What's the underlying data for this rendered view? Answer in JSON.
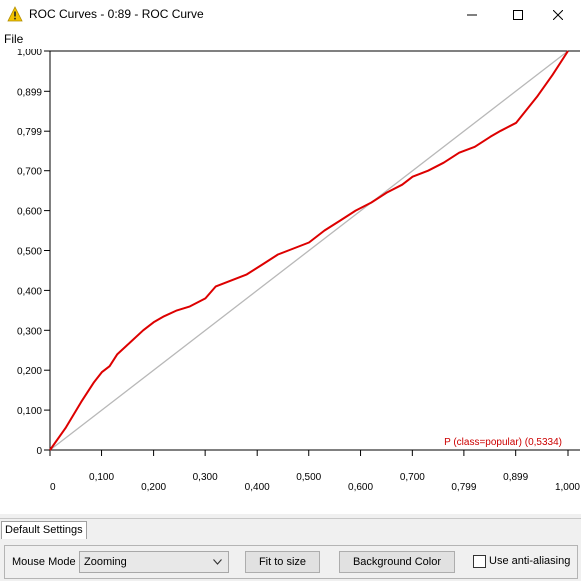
{
  "window": {
    "title": "ROC Curves - 0:89 - ROC Curve",
    "minimize_icon": "minimize-icon",
    "maximize_icon": "maximize-icon",
    "close_icon": "close-icon",
    "app_icon": "warning-triangle-icon"
  },
  "menu": {
    "file": "File"
  },
  "tab": {
    "default_settings": "Default Settings"
  },
  "controls": {
    "mouse_mode_label": "Mouse Mode",
    "mouse_mode_value": "Zooming",
    "fit_to_size": "Fit to size",
    "background_color": "Background Color",
    "anti_aliasing_label": "Use anti-aliasing",
    "anti_aliasing_checked": false
  },
  "colors": {
    "curve": "#dd0000",
    "diagonal": "#b8b8b8",
    "legend": "#cc0000"
  },
  "chart_data": {
    "type": "line",
    "title": "",
    "xlabel": "",
    "ylabel": "",
    "xlim": [
      0,
      1
    ],
    "ylim": [
      0,
      1
    ],
    "grid": false,
    "x_ticks": [
      {
        "v": 0.0,
        "label": "0"
      },
      {
        "v": 0.0995,
        "label": "0,100"
      },
      {
        "v": 0.2,
        "label": "0,200"
      },
      {
        "v": 0.2995,
        "label": "0,300"
      },
      {
        "v": 0.4,
        "label": "0,400"
      },
      {
        "v": 0.4995,
        "label": "0,500"
      },
      {
        "v": 0.5995,
        "label": "0,600"
      },
      {
        "v": 0.6995,
        "label": "0,700"
      },
      {
        "v": 0.799,
        "label": "0,799"
      },
      {
        "v": 0.899,
        "label": "0,899"
      },
      {
        "v": 1.0,
        "label": "1,000"
      }
    ],
    "y_ticks": [
      {
        "v": 0.0,
        "label": "0"
      },
      {
        "v": 0.1,
        "label": "0,100"
      },
      {
        "v": 0.2,
        "label": "0,200"
      },
      {
        "v": 0.3,
        "label": "0,300"
      },
      {
        "v": 0.4,
        "label": "0,400"
      },
      {
        "v": 0.5,
        "label": "0,500"
      },
      {
        "v": 0.6,
        "label": "0,600"
      },
      {
        "v": 0.7,
        "label": "0,700"
      },
      {
        "v": 0.799,
        "label": "0,799"
      },
      {
        "v": 0.899,
        "label": "0,899"
      },
      {
        "v": 1.0,
        "label": "1,000"
      }
    ],
    "diagonal": {
      "x": [
        0,
        1
      ],
      "y": [
        0,
        1
      ]
    },
    "series": [
      {
        "name": "P (class=popular) (0,5334)",
        "x": [
          0,
          0.03,
          0.06,
          0.085,
          0.1,
          0.115,
          0.13,
          0.155,
          0.18,
          0.2,
          0.22,
          0.245,
          0.27,
          0.3,
          0.32,
          0.35,
          0.38,
          0.41,
          0.44,
          0.47,
          0.5,
          0.53,
          0.56,
          0.59,
          0.62,
          0.65,
          0.68,
          0.7,
          0.73,
          0.76,
          0.79,
          0.82,
          0.85,
          0.87,
          0.9,
          0.94,
          0.97,
          1.0
        ],
        "y": [
          0,
          0.055,
          0.12,
          0.17,
          0.195,
          0.21,
          0.24,
          0.27,
          0.3,
          0.32,
          0.335,
          0.35,
          0.36,
          0.38,
          0.41,
          0.425,
          0.44,
          0.465,
          0.49,
          0.505,
          0.52,
          0.55,
          0.575,
          0.6,
          0.62,
          0.645,
          0.665,
          0.685,
          0.7,
          0.72,
          0.745,
          0.76,
          0.785,
          0.8,
          0.82,
          0.885,
          0.94,
          1.0
        ]
      }
    ],
    "legend_position": "bottom-right"
  }
}
